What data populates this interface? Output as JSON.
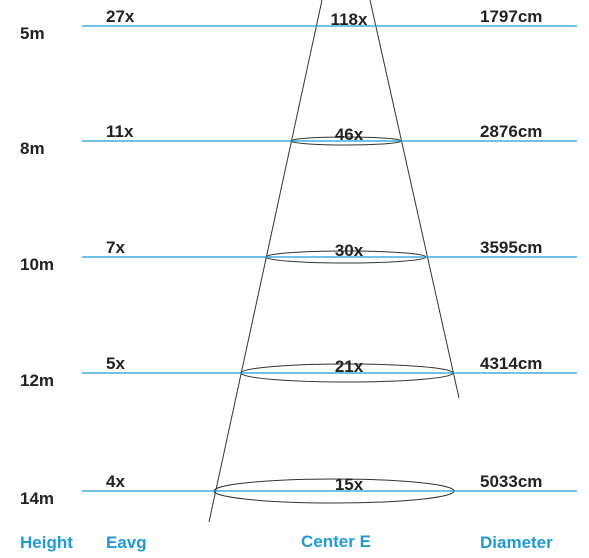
{
  "colors": {
    "line": "#1f9ad6",
    "header": "#1f9ad6",
    "text": "#222222",
    "cone": "#333333"
  },
  "headers": {
    "height": "Height",
    "eavg": "Eavg",
    "center": "Center E",
    "diameter": "Diameter"
  },
  "rows": [
    {
      "height": "5m",
      "eavg": "27x",
      "center": "118x",
      "diameter": "1797cm"
    },
    {
      "height": "8m",
      "eavg": "11x",
      "center": "46x",
      "diameter": "2876cm"
    },
    {
      "height": "10m",
      "eavg": "7x",
      "center": "30x",
      "diameter": "3595cm"
    },
    {
      "height": "12m",
      "eavg": "5x",
      "center": "21x",
      "diameter": "4314cm"
    },
    {
      "height": "14m",
      "eavg": "4x",
      "center": "15x",
      "diameter": "5033cm"
    }
  ]
}
